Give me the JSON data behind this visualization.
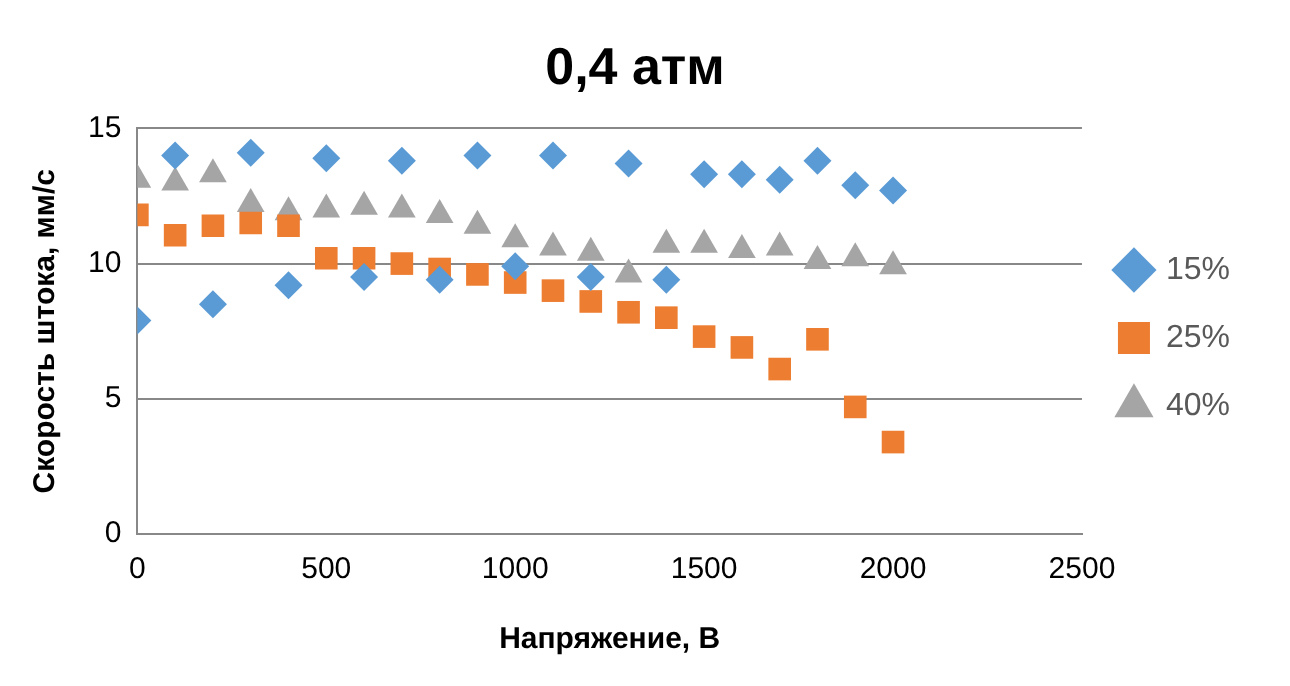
{
  "chart_data": {
    "type": "scatter",
    "title": "0,4 атм",
    "xlabel": "Напряжение, В",
    "ylabel": "Скорость штока, мм/с",
    "x": [
      0,
      100,
      200,
      300,
      400,
      500,
      600,
      700,
      800,
      900,
      1000,
      1100,
      1200,
      1300,
      1400,
      1500,
      1600,
      1700,
      1800,
      1900,
      2000
    ],
    "series": [
      {
        "name": "15%",
        "color": "#5b9bd5",
        "marker": "diamond",
        "values": [
          7.9,
          14.0,
          8.5,
          14.1,
          9.2,
          13.9,
          9.5,
          13.8,
          9.4,
          14.0,
          9.9,
          14.0,
          9.5,
          13.7,
          9.4,
          13.3,
          13.3,
          13.1,
          13.8,
          12.9,
          12.7
        ]
      },
      {
        "name": "25%",
        "color": "#ed7d31",
        "marker": "square",
        "values": [
          11.8,
          11.05,
          11.4,
          11.5,
          11.4,
          10.2,
          10.2,
          10.0,
          9.8,
          9.6,
          9.3,
          9.0,
          8.6,
          8.2,
          8.0,
          7.3,
          6.9,
          6.1,
          7.2,
          4.7,
          3.4
        ]
      },
      {
        "name": "40%",
        "color": "#a5a5a5",
        "marker": "triangle",
        "values": [
          13.1,
          13.0,
          13.3,
          12.2,
          11.9,
          12.0,
          12.1,
          12.0,
          11.8,
          11.4,
          10.9,
          10.6,
          10.4,
          9.6,
          10.7,
          10.7,
          10.5,
          10.6,
          10.1,
          10.2,
          9.9
        ]
      }
    ],
    "xlim": [
      0,
      2500
    ],
    "xticks": [
      0,
      500,
      1000,
      1500,
      2000,
      2500
    ],
    "ylim": [
      0,
      15
    ],
    "yticks": [
      0,
      5,
      10,
      15
    ],
    "grid": "y",
    "legend": "right"
  }
}
